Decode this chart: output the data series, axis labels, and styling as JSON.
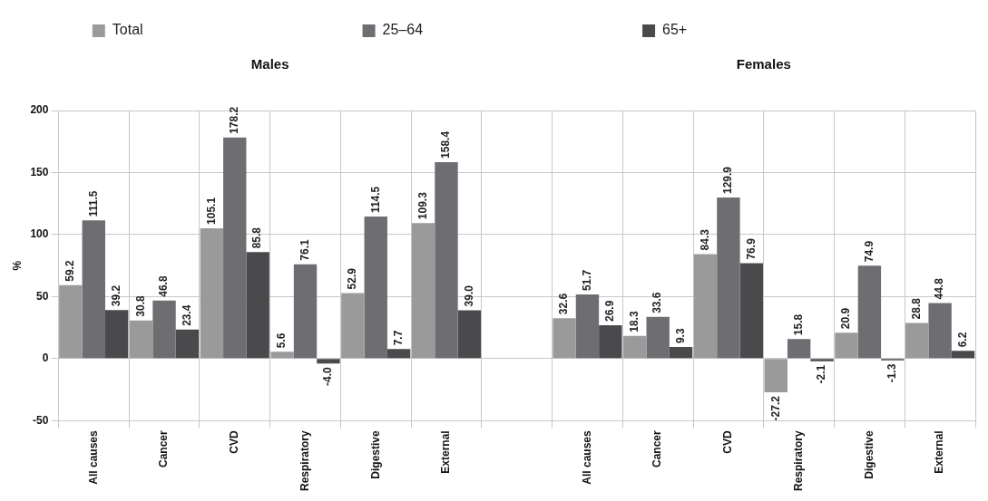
{
  "chart_data": {
    "type": "bar",
    "categories": [
      "All causes",
      "Cancer",
      "CVD",
      "Respiratory",
      "Digestive",
      "External",
      null,
      "All causes",
      "Cancer",
      "CVD",
      "Respiratory",
      "Digestive",
      "External"
    ],
    "series": [
      {
        "name": "Total",
        "color": "#9a9a9a",
        "values": [
          59.2,
          30.8,
          105.1,
          5.6,
          52.9,
          109.3,
          null,
          32.6,
          18.3,
          84.3,
          -27.2,
          20.9,
          28.8
        ]
      },
      {
        "name": "25–64",
        "color": "#6e6e72",
        "values": [
          111.5,
          46.8,
          178.2,
          76.1,
          114.5,
          158.4,
          null,
          51.7,
          33.6,
          129.9,
          15.8,
          74.9,
          44.8
        ]
      },
      {
        "name": "65+",
        "color": "#4a4a4c",
        "values": [
          39.2,
          23.4,
          85.8,
          -4.0,
          7.7,
          39.0,
          null,
          26.9,
          9.3,
          76.9,
          -2.1,
          -1.3,
          6.2
        ]
      }
    ],
    "value_labels": [
      [
        "59.2",
        "30.8",
        "105.1",
        "5.6",
        "52.9",
        "109.3",
        null,
        "32.6",
        "18.3",
        "84.3",
        "-27.2",
        "20.9",
        "28.8"
      ],
      [
        "111.5",
        "46.8",
        "178.2",
        "76.1",
        "114.5",
        "158.4",
        null,
        "51.7",
        "33.6",
        "129.9",
        "15.8",
        "74.9",
        "44.8"
      ],
      [
        "39.2",
        "23.4",
        "85.8",
        "-4.0",
        "7.7",
        "39.0",
        null,
        "26.9",
        "9.3",
        "76.9",
        "-2.1",
        "-1.3",
        "6.2"
      ]
    ],
    "annotations": [
      "Males",
      "Females"
    ],
    "ylabel": "%",
    "ylim": [
      -50,
      200
    ],
    "yticks": [
      -50,
      0,
      50,
      100,
      150,
      200
    ],
    "grid": true,
    "legend": "top"
  }
}
